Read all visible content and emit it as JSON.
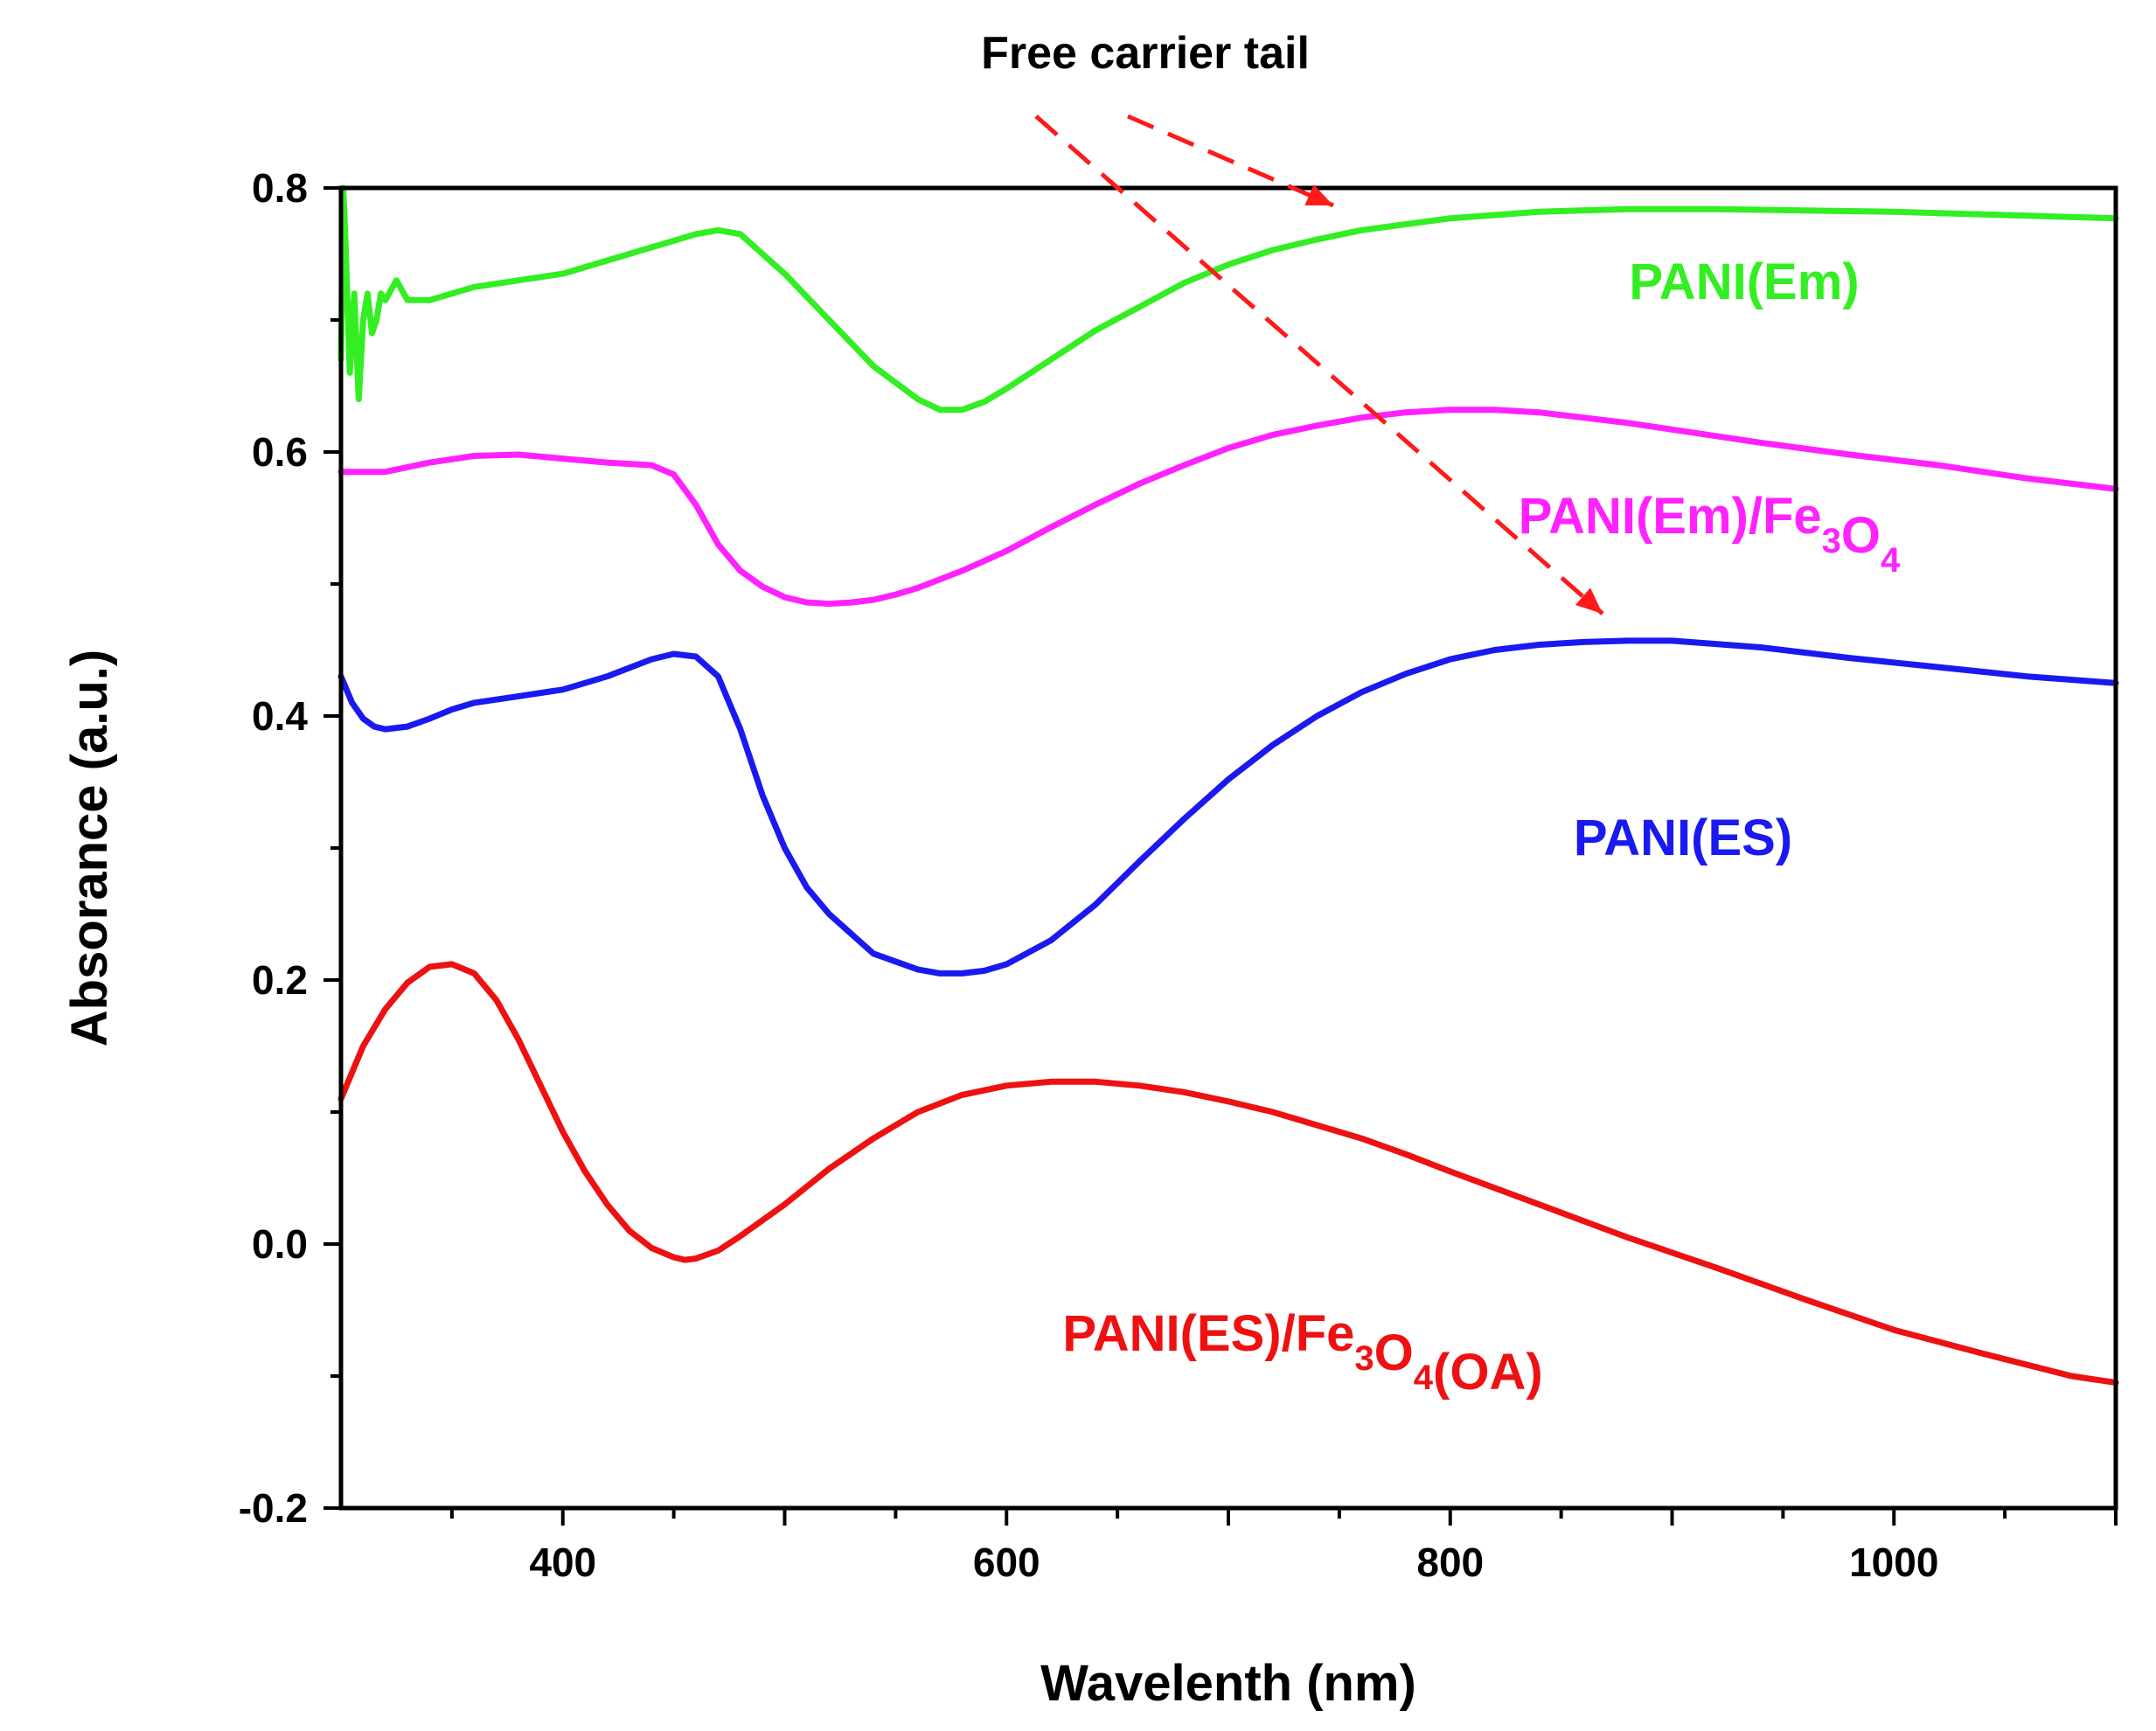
{
  "chart_data": {
    "type": "line",
    "title": "",
    "xlabel": "Wavelenth (nm)",
    "ylabel": "Absorance (a.u.)",
    "xlim": [
      300,
      1100
    ],
    "ylim": [
      -0.2,
      0.8
    ],
    "x_ticks": [
      400,
      600,
      800,
      1000
    ],
    "x_tick_labels": [
      "400",
      "600",
      "800",
      "1000"
    ],
    "y_ticks": [
      -0.2,
      0.0,
      0.2,
      0.4,
      0.6,
      0.8
    ],
    "y_tick_labels": [
      "-0.2",
      "0.0",
      "0.2",
      "0.4",
      "0.6",
      "0.8"
    ],
    "grid": false,
    "annotation": {
      "text": "Free carrier tail",
      "arrow_color": "#ff1a1a"
    },
    "series": [
      {
        "name": "PANI(Em)",
        "label_parts": [
          {
            "t": "PANI(Em)"
          }
        ],
        "color": "#33ee22",
        "x": [
          300,
          301,
          302,
          304,
          306,
          308,
          310,
          312,
          314,
          316,
          318,
          320,
          325,
          330,
          340,
          360,
          380,
          400,
          420,
          440,
          460,
          470,
          480,
          490,
          500,
          520,
          540,
          560,
          570,
          580,
          590,
          600,
          620,
          640,
          660,
          680,
          700,
          720,
          740,
          760,
          800,
          840,
          880,
          920,
          960,
          1000,
          1040,
          1080,
          1100
        ],
        "y": [
          0.67,
          0.8,
          0.76,
          0.66,
          0.72,
          0.64,
          0.7,
          0.72,
          0.69,
          0.7,
          0.72,
          0.715,
          0.73,
          0.715,
          0.715,
          0.725,
          0.73,
          0.735,
          0.745,
          0.755,
          0.765,
          0.768,
          0.765,
          0.75,
          0.735,
          0.7,
          0.665,
          0.64,
          0.632,
          0.632,
          0.638,
          0.648,
          0.67,
          0.692,
          0.71,
          0.728,
          0.742,
          0.753,
          0.761,
          0.768,
          0.777,
          0.782,
          0.784,
          0.784,
          0.783,
          0.782,
          0.78,
          0.778,
          0.777
        ]
      },
      {
        "name": "PANI(Em)/Fe3O4",
        "label_parts": [
          {
            "t": "PANI(Em)/Fe"
          },
          {
            "t": "3",
            "sub": true
          },
          {
            "t": "O"
          },
          {
            "t": "4",
            "sub": true
          }
        ],
        "color": "#ff22ff",
        "x": [
          300,
          320,
          340,
          360,
          380,
          400,
          420,
          440,
          450,
          460,
          470,
          480,
          490,
          500,
          510,
          520,
          530,
          540,
          550,
          560,
          580,
          600,
          620,
          640,
          660,
          680,
          700,
          720,
          740,
          760,
          780,
          800,
          820,
          840,
          860,
          880,
          900,
          940,
          980,
          1020,
          1060,
          1100
        ],
        "y": [
          0.585,
          0.585,
          0.592,
          0.597,
          0.598,
          0.595,
          0.592,
          0.59,
          0.583,
          0.56,
          0.53,
          0.51,
          0.498,
          0.49,
          0.486,
          0.485,
          0.486,
          0.488,
          0.492,
          0.497,
          0.51,
          0.525,
          0.543,
          0.56,
          0.576,
          0.59,
          0.603,
          0.613,
          0.62,
          0.626,
          0.63,
          0.632,
          0.632,
          0.63,
          0.626,
          0.622,
          0.617,
          0.607,
          0.598,
          0.59,
          0.58,
          0.572
        ]
      },
      {
        "name": "PANI(ES)",
        "label_parts": [
          {
            "t": "PANI(ES)"
          }
        ],
        "color": "#1a1af0",
        "x": [
          300,
          305,
          310,
          315,
          320,
          330,
          340,
          350,
          360,
          380,
          400,
          420,
          440,
          450,
          460,
          470,
          480,
          490,
          500,
          510,
          520,
          540,
          560,
          570,
          580,
          590,
          600,
          620,
          640,
          660,
          680,
          700,
          720,
          740,
          760,
          780,
          800,
          820,
          840,
          860,
          880,
          900,
          940,
          980,
          1020,
          1060,
          1100
        ],
        "y": [
          0.43,
          0.41,
          0.398,
          0.392,
          0.39,
          0.392,
          0.398,
          0.405,
          0.41,
          0.415,
          0.42,
          0.43,
          0.443,
          0.447,
          0.445,
          0.43,
          0.39,
          0.34,
          0.3,
          0.27,
          0.25,
          0.22,
          0.208,
          0.205,
          0.205,
          0.207,
          0.212,
          0.23,
          0.257,
          0.29,
          0.322,
          0.352,
          0.378,
          0.4,
          0.418,
          0.432,
          0.443,
          0.45,
          0.454,
          0.456,
          0.457,
          0.457,
          0.452,
          0.444,
          0.437,
          0.43,
          0.425
        ]
      },
      {
        "name": "PANI(ES)/Fe3O4(OA)",
        "label_parts": [
          {
            "t": "PANI(ES)/Fe"
          },
          {
            "t": "3",
            "sub": true
          },
          {
            "t": "O"
          },
          {
            "t": "4",
            "sub": true
          },
          {
            "t": "(OA)"
          }
        ],
        "color": "#ee1111",
        "x": [
          300,
          310,
          320,
          330,
          340,
          350,
          360,
          370,
          380,
          390,
          400,
          410,
          420,
          430,
          440,
          450,
          455,
          460,
          470,
          480,
          500,
          520,
          540,
          560,
          580,
          600,
          620,
          640,
          660,
          680,
          700,
          720,
          740,
          760,
          780,
          800,
          840,
          880,
          920,
          960,
          1000,
          1040,
          1080,
          1100
        ],
        "y": [
          0.11,
          0.15,
          0.178,
          0.198,
          0.21,
          0.212,
          0.205,
          0.185,
          0.155,
          0.12,
          0.085,
          0.055,
          0.03,
          0.01,
          -0.003,
          -0.01,
          -0.012,
          -0.011,
          -0.005,
          0.006,
          0.03,
          0.057,
          0.08,
          0.1,
          0.113,
          0.12,
          0.123,
          0.123,
          0.12,
          0.115,
          0.108,
          0.1,
          0.09,
          0.08,
          0.068,
          0.055,
          0.03,
          0.005,
          -0.018,
          -0.042,
          -0.065,
          -0.083,
          -0.1,
          -0.105
        ]
      }
    ]
  }
}
